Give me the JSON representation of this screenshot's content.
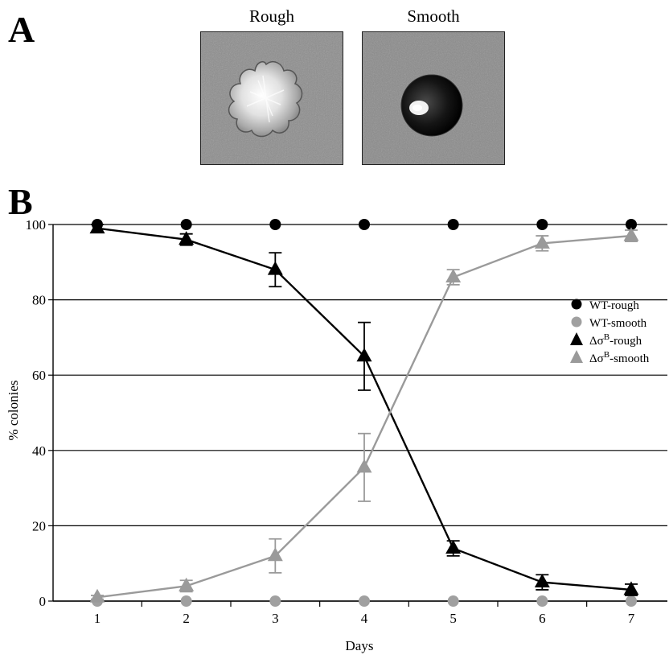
{
  "panel_a": {
    "letter": "A",
    "images": [
      {
        "label": "Rough"
      },
      {
        "label": "Smooth"
      }
    ]
  },
  "panel_b": {
    "letter": "B"
  },
  "chart_data": {
    "type": "line",
    "title": "",
    "xlabel": "Days",
    "ylabel": "% colonies",
    "x": [
      1,
      2,
      3,
      4,
      5,
      6,
      7
    ],
    "xlim": [
      0.5,
      7.8
    ],
    "ylim": [
      0,
      100
    ],
    "yticks": [
      0,
      20,
      40,
      60,
      80,
      100
    ],
    "grid": "horizontal",
    "legend_position": "right",
    "series": [
      {
        "name": "WT-rough",
        "marker": "circle",
        "color": "#000000",
        "line": false,
        "values": [
          100,
          100,
          100,
          100,
          100,
          100,
          100
        ]
      },
      {
        "name": "WT-smooth",
        "marker": "circle",
        "color": "#a0a0a0",
        "line": false,
        "values": [
          0,
          0,
          0,
          0,
          0,
          0,
          0
        ]
      },
      {
        "name": "ΔσB-rough",
        "name_base": "Δσ",
        "name_sup": "B",
        "name_suffix": "-rough",
        "marker": "triangle",
        "color": "#000000",
        "line": true,
        "values": [
          99,
          96,
          88,
          65,
          14,
          5,
          3
        ],
        "errors": [
          1,
          1.5,
          4.5,
          9,
          2,
          2,
          1.5
        ]
      },
      {
        "name": "ΔσB-smooth",
        "name_base": "Δσ",
        "name_sup": "B",
        "name_suffix": "-smooth",
        "marker": "triangle",
        "color": "#9a9a9a",
        "line": true,
        "values": [
          1,
          4,
          12,
          35.5,
          86,
          95,
          97
        ],
        "errors": [
          0.5,
          1.5,
          4.5,
          9,
          2,
          2,
          1.5
        ]
      }
    ]
  }
}
